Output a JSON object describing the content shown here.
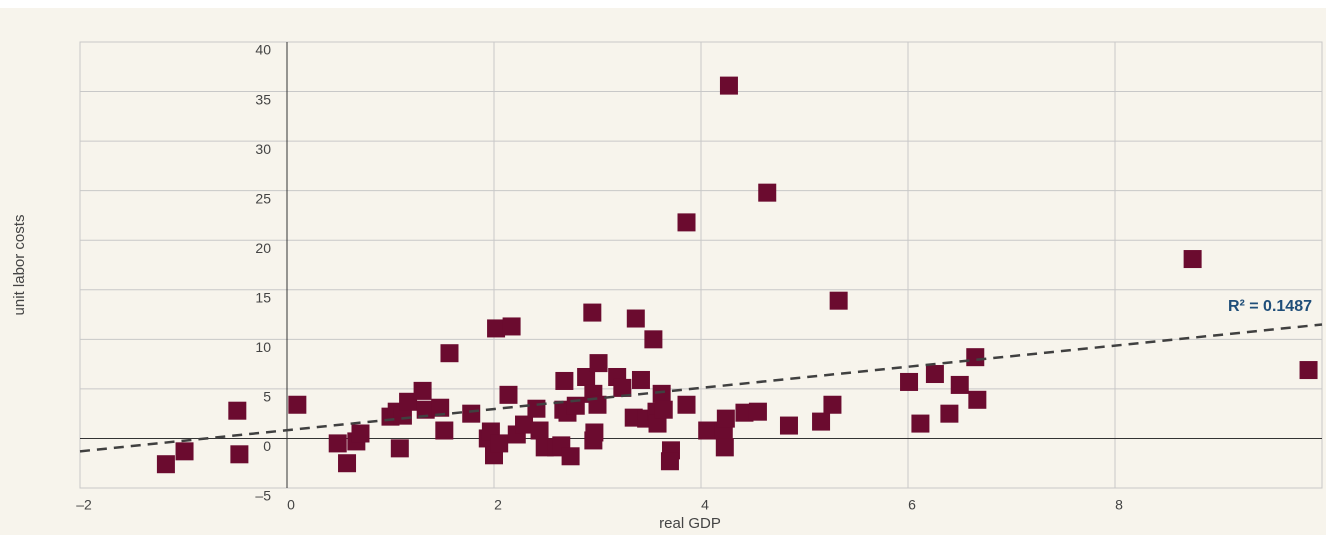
{
  "chart_data": {
    "type": "scatter",
    "x_label": "real GDP",
    "y_label": "unit labor costs",
    "annotation": "R² = 0.1487",
    "color": "#6b0b2f",
    "grid": true,
    "xlim": [
      -2,
      10
    ],
    "ylim": [
      -5,
      40
    ],
    "xticks": [
      {
        "value": -2,
        "label": "–2"
      },
      0,
      2,
      4,
      6,
      8
    ],
    "yticks": [
      {
        "value": -5,
        "label": "–5"
      },
      0,
      5,
      10,
      15,
      20,
      25,
      30,
      35,
      40
    ],
    "x": [
      -1.17,
      -0.99,
      -0.48,
      -0.46,
      0.1,
      0.49,
      0.58,
      0.67,
      0.71,
      1.0,
      1.06,
      1.09,
      1.12,
      1.17,
      1.31,
      1.34,
      1.48,
      1.52,
      1.57,
      1.78,
      1.94,
      1.97,
      2.0,
      2.02,
      2.05,
      2.14,
      2.17,
      2.22,
      2.29,
      2.41,
      2.44,
      2.49,
      2.6,
      2.65,
      2.68,
      2.67,
      2.71,
      2.74,
      2.79,
      2.89,
      2.95,
      2.96,
      2.96,
      2.97,
      3.01,
      3.0,
      3.19,
      3.24,
      3.35,
      3.37,
      3.42,
      3.47,
      3.54,
      3.57,
      3.58,
      3.62,
      3.64,
      3.71,
      3.7,
      3.86,
      3.86,
      4.06,
      4.22,
      4.24,
      4.23,
      4.27,
      4.42,
      4.55,
      4.64,
      4.85,
      5.16,
      5.27,
      5.33,
      6.01,
      6.12,
      6.26,
      6.4,
      6.5,
      6.65,
      6.67,
      8.75,
      9.87
    ],
    "values": [
      -2.6,
      -1.3,
      2.8,
      -1.6,
      3.4,
      -0.5,
      -2.5,
      -0.3,
      0.5,
      2.2,
      2.7,
      -1.0,
      2.3,
      3.7,
      4.8,
      2.9,
      3.1,
      0.8,
      8.6,
      2.5,
      0.0,
      0.7,
      -1.7,
      11.1,
      -0.5,
      4.4,
      11.3,
      0.4,
      1.4,
      3.0,
      0.8,
      -0.9,
      -0.9,
      -0.7,
      5.8,
      2.9,
      2.6,
      -1.8,
      3.3,
      6.2,
      12.7,
      4.5,
      -0.2,
      0.6,
      7.6,
      3.4,
      6.2,
      5.1,
      2.1,
      12.1,
      5.9,
      2.0,
      10.0,
      2.7,
      1.5,
      4.5,
      2.9,
      -1.2,
      -2.3,
      3.4,
      21.8,
      0.8,
      0.8,
      2.0,
      -0.9,
      35.6,
      2.6,
      2.7,
      24.8,
      1.3,
      1.7,
      3.4,
      13.9,
      5.7,
      1.5,
      6.5,
      2.5,
      5.4,
      8.2,
      3.9,
      18.1,
      6.9
    ],
    "trendline": {
      "color": "#404040",
      "x": [
        -2,
        10
      ],
      "values": [
        -1.3,
        11.5
      ]
    }
  }
}
